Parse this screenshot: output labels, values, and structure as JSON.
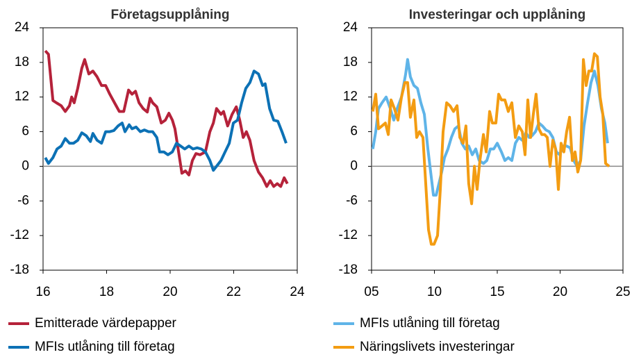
{
  "chart_data": [
    {
      "type": "line",
      "title": "Företagsupplåning",
      "xlim": [
        16,
        24
      ],
      "xticks": [
        16,
        18,
        20,
        22,
        24
      ],
      "ylim": [
        -18,
        24
      ],
      "yticks": [
        -18,
        -12,
        -6,
        0,
        6,
        12,
        18,
        24
      ],
      "series": [
        {
          "name": "Emitterade värdepapper",
          "color": "#b5223a",
          "x": [
            16.07,
            16.17,
            16.31,
            16.42,
            16.57,
            16.7,
            16.83,
            16.9,
            16.98,
            17.09,
            17.22,
            17.31,
            17.44,
            17.57,
            17.7,
            17.84,
            17.97,
            18.1,
            18.25,
            18.4,
            18.54,
            18.69,
            18.8,
            18.91,
            19.02,
            19.15,
            19.28,
            19.37,
            19.45,
            19.58,
            19.72,
            19.85,
            19.96,
            20.07,
            20.15,
            20.28,
            20.37,
            20.48,
            20.59,
            20.7,
            20.81,
            20.94,
            21.11,
            21.25,
            21.36,
            21.46,
            21.6,
            21.68,
            21.81,
            21.95,
            22.08,
            22.19,
            22.3,
            22.4,
            22.51,
            22.64,
            22.78,
            22.91,
            23.04,
            23.15,
            23.26,
            23.37,
            23.48,
            23.59,
            23.69
          ],
          "values": [
            20,
            19.4,
            11.4,
            11,
            10.5,
            9.5,
            10.5,
            12,
            11,
            13.5,
            17,
            18.5,
            16,
            16.5,
            15.5,
            14,
            14,
            12.5,
            11,
            9.5,
            9.5,
            13.2,
            12.5,
            13,
            11,
            10,
            9.4,
            11.8,
            11,
            10.3,
            7.5,
            8,
            9.2,
            8,
            6.5,
            2,
            -1.2,
            -0.8,
            -1.5,
            1,
            2.2,
            2,
            2.5,
            6,
            7.5,
            10,
            9,
            9.5,
            7,
            9,
            10.3,
            8,
            5,
            6,
            4.5,
            1,
            -1,
            -2,
            -3.5,
            -2.5,
            -3.5,
            -3,
            -3.5,
            -2,
            -3
          ]
        },
        {
          "name": "MFIs utlåning till företag",
          "color": "#0c71b5",
          "x": [
            16.07,
            16.17,
            16.31,
            16.44,
            16.57,
            16.7,
            16.83,
            16.96,
            17.09,
            17.22,
            17.36,
            17.49,
            17.57,
            17.7,
            17.84,
            17.97,
            18.1,
            18.23,
            18.36,
            18.49,
            18.58,
            18.71,
            18.8,
            18.93,
            19.06,
            19.19,
            19.32,
            19.45,
            19.58,
            19.67,
            19.8,
            19.93,
            20.07,
            20.2,
            20.33,
            20.46,
            20.59,
            20.72,
            20.85,
            20.98,
            21.11,
            21.25,
            21.36,
            21.46,
            21.6,
            21.73,
            21.86,
            21.99,
            22.12,
            22.25,
            22.38,
            22.51,
            22.64,
            22.78,
            22.91,
            22.99,
            23.13,
            23.26,
            23.39,
            23.52,
            23.65
          ],
          "values": [
            1.5,
            0.5,
            1.5,
            3,
            3.5,
            4.8,
            4,
            4,
            4.5,
            5.8,
            5.3,
            4.3,
            5.7,
            4.5,
            4,
            6,
            6,
            6.2,
            7,
            7.5,
            6,
            7.2,
            6.5,
            6.8,
            6,
            6.3,
            6,
            6,
            5,
            2.5,
            2.5,
            2,
            2.5,
            4,
            3.5,
            3,
            3.5,
            3,
            3.2,
            3,
            2.5,
            1,
            -0.7,
            0,
            1,
            2.5,
            4,
            7.5,
            8,
            11,
            13.5,
            14.5,
            16.5,
            16,
            14,
            14.3,
            10,
            8,
            7.8,
            6,
            4
          ]
        }
      ]
    },
    {
      "type": "line",
      "title": "Investeringar och upplåning",
      "xlim": [
        5,
        25
      ],
      "xticks": [
        {
          "value": 5,
          "label": "05"
        },
        10,
        15,
        20,
        25
      ],
      "ylim": [
        -18,
        24
      ],
      "yticks": [
        -18,
        -12,
        -6,
        0,
        6,
        12,
        18,
        24
      ],
      "series": [
        {
          "name": "MFIs utlåning till företag",
          "color": "#5fb4e8",
          "x": [
            5.1,
            5.33,
            5.55,
            5.83,
            6.16,
            6.49,
            6.77,
            7.04,
            7.38,
            7.71,
            7.87,
            8.09,
            8.37,
            8.65,
            8.92,
            9.2,
            9.48,
            9.7,
            9.92,
            10.14,
            10.36,
            10.58,
            10.8,
            11.08,
            11.35,
            11.63,
            11.91,
            12.18,
            12.46,
            12.73,
            13.01,
            13.29,
            13.56,
            13.9,
            14.17,
            14.45,
            14.72,
            15.0,
            15.33,
            15.61,
            15.88,
            16.16,
            16.44,
            16.71,
            16.99,
            17.27,
            17.54,
            17.76,
            18.04,
            18.31,
            18.59,
            18.87,
            19.14,
            19.42,
            19.7,
            19.97,
            20.25,
            20.52,
            20.8,
            21.08,
            21.35,
            21.63,
            21.9,
            22.18,
            22.46,
            22.73,
            23.01,
            23.29,
            23.56,
            23.78
          ],
          "values": [
            3,
            6,
            10,
            11,
            12,
            10,
            8,
            10,
            12,
            16,
            18.5,
            15.5,
            14,
            13.5,
            11,
            9,
            3,
            -1,
            -5,
            -5,
            -3,
            -1,
            1.5,
            3,
            5,
            6.5,
            7,
            4,
            3,
            3.5,
            2,
            3,
            1,
            0.5,
            1,
            3,
            3,
            4,
            2.5,
            1,
            1.5,
            1,
            4,
            5,
            4.5,
            5.8,
            5,
            5.3,
            6,
            7.5,
            7,
            6.3,
            6,
            5,
            2.5,
            2,
            3.5,
            3.5,
            3.2,
            1,
            0,
            1,
            7,
            11,
            14.5,
            16.5,
            14,
            10,
            7.5,
            4
          ]
        },
        {
          "name": "Näringslivets investeringar",
          "color": "#f39c12",
          "x": [
            5.1,
            5.33,
            5.55,
            5.83,
            6.1,
            6.33,
            6.55,
            6.82,
            7.1,
            7.38,
            7.65,
            7.87,
            8.09,
            8.37,
            8.59,
            8.81,
            9.09,
            9.31,
            9.53,
            9.75,
            9.97,
            10.25,
            10.47,
            10.69,
            10.97,
            11.24,
            11.52,
            11.8,
            12.02,
            12.29,
            12.51,
            12.73,
            12.96,
            13.18,
            13.4,
            13.62,
            13.9,
            14.12,
            14.39,
            14.61,
            14.89,
            15.11,
            15.33,
            15.61,
            15.88,
            16.16,
            16.44,
            16.71,
            16.99,
            17.21,
            17.43,
            17.65,
            17.87,
            18.09,
            18.31,
            18.54,
            18.76,
            18.98,
            19.2,
            19.42,
            19.64,
            19.86,
            20.08,
            20.3,
            20.52,
            20.75,
            20.97,
            21.19,
            21.41,
            21.63,
            21.85,
            22.07,
            22.29,
            22.51,
            22.73,
            22.96,
            23.18,
            23.4,
            23.62,
            23.9
          ],
          "values": [
            9.5,
            12.5,
            6.5,
            7,
            7.5,
            5.5,
            11.5,
            10,
            8,
            12,
            14.5,
            14.5,
            8.5,
            11.5,
            5,
            6,
            5,
            -3,
            -11,
            -13.5,
            -13.5,
            -12,
            -4,
            6,
            11,
            10.5,
            9.5,
            10.5,
            5,
            4,
            7,
            -3,
            -6.5,
            0,
            -4,
            1,
            5.5,
            2.5,
            9.5,
            7.5,
            7.5,
            12.5,
            11.5,
            11.5,
            9.5,
            11,
            5,
            7,
            6,
            2,
            11.5,
            5,
            9,
            12.5,
            6.5,
            5.5,
            5.5,
            5,
            0,
            4.5,
            3,
            -4,
            4,
            2.5,
            6,
            8.5,
            1,
            2.5,
            -1,
            1,
            18.5,
            14,
            16.5,
            16.5,
            19.5,
            19,
            12,
            9,
            0.5,
            0
          ]
        }
      ]
    }
  ]
}
